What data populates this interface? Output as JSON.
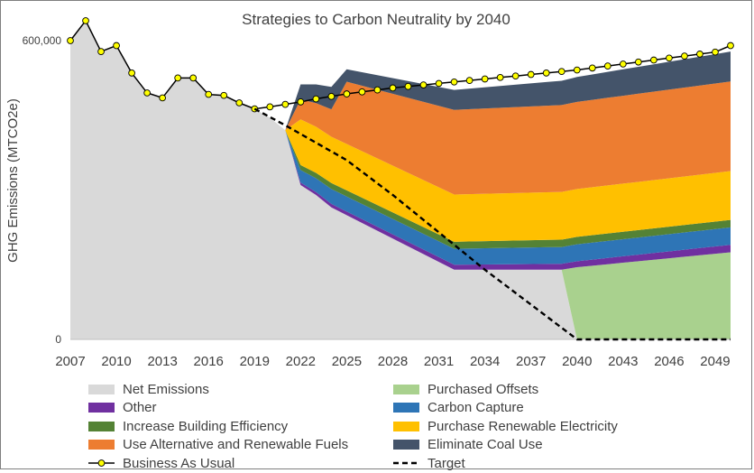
{
  "chart_data": {
    "type": "area",
    "title": "Strategies to Carbon Neutrality by 2040",
    "ylabel": "GHG Emissions (MTCO2e)",
    "xlabel": "",
    "xlim": [
      2007,
      2050
    ],
    "ylim": [
      0,
      600000
    ],
    "x_ticks": [
      2007,
      2010,
      2013,
      2016,
      2019,
      2022,
      2025,
      2028,
      2031,
      2034,
      2037,
      2040,
      2043,
      2046,
      2049
    ],
    "y_ticks": [
      {
        "value": 0,
        "label": "0"
      },
      {
        "value": 600000,
        "label": "600,000"
      }
    ],
    "grid": false,
    "legend_position": "bottom",
    "stacked_series": [
      {
        "name": "Net Emissions",
        "color": "#d9d9d9",
        "points": [
          [
            2007,
            600000
          ],
          [
            2008,
            640000
          ],
          [
            2009,
            578000
          ],
          [
            2010,
            590000
          ],
          [
            2011,
            535000
          ],
          [
            2012,
            495000
          ],
          [
            2013,
            485000
          ],
          [
            2014,
            525000
          ],
          [
            2015,
            525000
          ],
          [
            2016,
            492000
          ],
          [
            2017,
            490000
          ],
          [
            2018,
            475000
          ],
          [
            2019,
            463000
          ],
          [
            2020,
            445000
          ],
          [
            2021,
            420000
          ],
          [
            2022,
            310000
          ],
          [
            2023,
            290000
          ],
          [
            2024,
            265000
          ],
          [
            2032,
            140000
          ],
          [
            2038,
            140000
          ],
          [
            2039,
            140000
          ],
          [
            2040,
            0
          ],
          [
            2050,
            0
          ]
        ]
      },
      {
        "name": "Purchased Offsets",
        "color": "#a9d18e",
        "points": [
          [
            2007,
            0
          ],
          [
            2039,
            0
          ],
          [
            2040,
            145000
          ],
          [
            2041,
            148000
          ],
          [
            2042,
            151000
          ],
          [
            2043,
            154000
          ],
          [
            2044,
            157000
          ],
          [
            2045,
            160000
          ],
          [
            2046,
            163000
          ],
          [
            2047,
            166000
          ],
          [
            2048,
            169000
          ],
          [
            2049,
            172000
          ],
          [
            2050,
            175000
          ]
        ]
      },
      {
        "name": "Other",
        "color": "#7030a0",
        "points": [
          [
            2007,
            0
          ],
          [
            2021,
            0
          ],
          [
            2022,
            5000
          ],
          [
            2024,
            7000
          ],
          [
            2032,
            10000
          ],
          [
            2040,
            12000
          ],
          [
            2050,
            15000
          ]
        ]
      },
      {
        "name": "Carbon Capture",
        "color": "#2e75b6",
        "points": [
          [
            2007,
            0
          ],
          [
            2021,
            0
          ],
          [
            2022,
            25000
          ],
          [
            2024,
            30000
          ],
          [
            2032,
            32000
          ],
          [
            2040,
            34000
          ],
          [
            2050,
            35000
          ]
        ]
      },
      {
        "name": "Increase Building Efficiency",
        "color": "#548235",
        "points": [
          [
            2007,
            0
          ],
          [
            2021,
            0
          ],
          [
            2022,
            10000
          ],
          [
            2024,
            12000
          ],
          [
            2032,
            14000
          ],
          [
            2040,
            15000
          ],
          [
            2050,
            15000
          ]
        ]
      },
      {
        "name": "Purchase Renewable Electricity",
        "color": "#ffc000",
        "points": [
          [
            2007,
            0
          ],
          [
            2021,
            0
          ],
          [
            2022,
            92000
          ],
          [
            2024,
            93000
          ],
          [
            2032,
            95000
          ],
          [
            2040,
            96000
          ],
          [
            2050,
            98000
          ]
        ]
      },
      {
        "name": "Use Alternative and Renewable Fuels",
        "color": "#ed7d31",
        "points": [
          [
            2007,
            0
          ],
          [
            2021,
            0
          ],
          [
            2022,
            40000
          ],
          [
            2024,
            55000
          ],
          [
            2025,
            125000
          ],
          [
            2032,
            170000
          ],
          [
            2040,
            175000
          ],
          [
            2050,
            180000
          ]
        ]
      },
      {
        "name": "Eliminate Coal Use",
        "color": "#44546a",
        "points": [
          [
            2007,
            0
          ],
          [
            2021,
            0
          ],
          [
            2022,
            30000
          ],
          [
            2024,
            45000
          ],
          [
            2025,
            25000
          ],
          [
            2032,
            40000
          ],
          [
            2040,
            50000
          ],
          [
            2050,
            60000
          ]
        ]
      }
    ],
    "business_as_usual": {
      "name": "Business As Usual",
      "line_color": "#000000",
      "marker_color": "#ffff00",
      "x": [
        2007,
        2008,
        2009,
        2010,
        2011,
        2012,
        2013,
        2014,
        2015,
        2016,
        2017,
        2018,
        2019,
        2020,
        2021,
        2022,
        2023,
        2024,
        2025,
        2026,
        2027,
        2028,
        2029,
        2030,
        2031,
        2032,
        2033,
        2034,
        2035,
        2036,
        2037,
        2038,
        2039,
        2040,
        2041,
        2042,
        2043,
        2044,
        2045,
        2046,
        2047,
        2048,
        2049,
        2050
      ],
      "y": [
        600000,
        640000,
        578000,
        590000,
        535000,
        495000,
        485000,
        525000,
        525000,
        492000,
        490000,
        475000,
        463000,
        467000,
        472000,
        477000,
        483000,
        488000,
        493000,
        497000,
        501000,
        505000,
        508000,
        511000,
        514000,
        517000,
        520000,
        523000,
        526000,
        529000,
        532000,
        535000,
        538000,
        541000,
        545000,
        549000,
        553000,
        557000,
        561000,
        565000,
        569000,
        573000,
        577000,
        590000
      ]
    },
    "target": {
      "name": "Target",
      "points": [
        [
          2019,
          463000
        ],
        [
          2021,
          430000
        ],
        [
          2023,
          395000
        ],
        [
          2025,
          360000
        ],
        [
          2028,
          290000
        ],
        [
          2032,
          190000
        ],
        [
          2034,
          140000
        ],
        [
          2037,
          70000
        ],
        [
          2040,
          0
        ],
        [
          2050,
          0
        ]
      ]
    }
  }
}
